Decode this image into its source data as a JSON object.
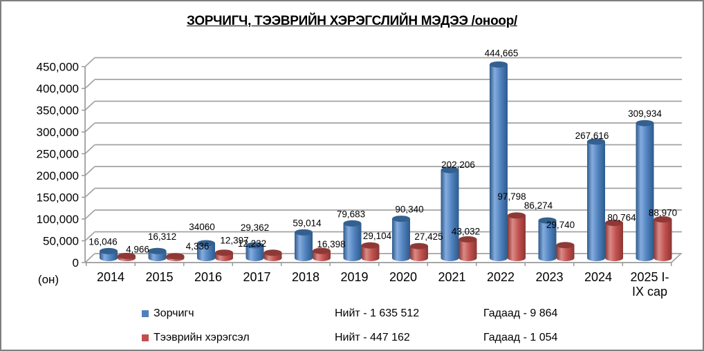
{
  "title": "ЗОРЧИГЧ, ТЭЭВРИЙН ХЭРЭГСЛИЙН МЭДЭЭ /оноор/",
  "chart_data": {
    "type": "bar",
    "style": "3d-cylinder",
    "title": "ЗОРЧИГЧ, ТЭЭВРИЙН ХЭРЭГСЛИЙН МЭДЭЭ /оноор/",
    "xlabel": "(он)",
    "ylabel": "",
    "ylim": [
      0,
      450000
    ],
    "y_ticks": [
      0,
      50000,
      100000,
      150000,
      200000,
      250000,
      300000,
      350000,
      400000,
      450000
    ],
    "grid": true,
    "legend_position": "bottom",
    "categories": [
      "2014",
      "2015",
      "2016",
      "2017",
      "2018",
      "2019",
      "2020",
      "2021",
      "2022",
      "2023",
      "2024",
      "2025 I-IX сар"
    ],
    "category_wrap": {
      "11": [
        "2025 I-",
        "IX сар"
      ]
    },
    "series": [
      {
        "name": "Зорчигч",
        "color": "#4F81BD",
        "values": [
          16046,
          16312,
          34060,
          29362,
          59014,
          79683,
          90340,
          202206,
          444665,
          86274,
          267616,
          309934
        ],
        "labels": [
          "16,046",
          "16,312",
          "34060",
          "29,362",
          "59,014",
          "79,683",
          "90,340",
          "202,206",
          "444,665",
          "86,274",
          "267,616",
          "309,934"
        ]
      },
      {
        "name": "Тээврийн хэрэгсэл",
        "color": "#C0504D",
        "values": [
          4966,
          4336,
          12397,
          12232,
          16398,
          29104,
          27425,
          43032,
          97798,
          29740,
          80764,
          88970
        ],
        "labels": [
          "4,966",
          "4,336",
          "12,397",
          "12,232",
          "16,398",
          "29,104",
          "27,425",
          "43,032",
          "97,798",
          "29,740",
          "80,764",
          "88,970"
        ]
      }
    ]
  },
  "legend": {
    "rows": [
      {
        "series": "Зорчигч",
        "color": "#4F81BD",
        "total_label": "Нийт - 1 635 512",
        "foreign_label": "Гадаад - 9 864"
      },
      {
        "series": "Тээврийн хэрэгсэл",
        "color": "#C0504D",
        "total_label": "Нийт - 447 162",
        "foreign_label": "Гадаад - 1 054"
      }
    ]
  }
}
